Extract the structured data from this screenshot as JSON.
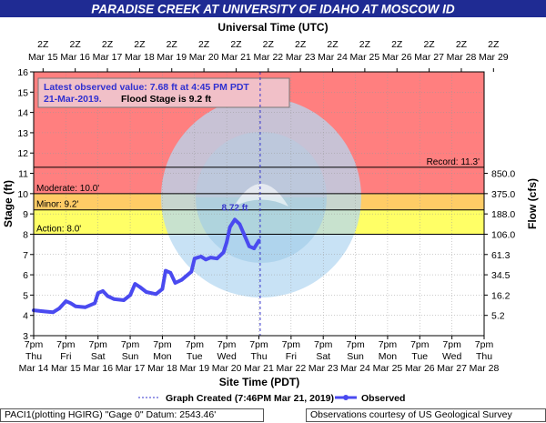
{
  "title": "PARADISE CREEK AT UNIVERSITY OF IDAHO AT MOSCOW ID",
  "top_axis_title": "Universal Time (UTC)",
  "bottom_axis_title": "Site Time (PDT)",
  "left_axis_title": "Stage (ft)",
  "right_axis_title": "Flow (cfs)",
  "top_ticks": [
    {
      "hour": "2Z",
      "date": "Mar 15"
    },
    {
      "hour": "2Z",
      "date": "Mar 16"
    },
    {
      "hour": "2Z",
      "date": "Mar 17"
    },
    {
      "hour": "2Z",
      "date": "Mar 18"
    },
    {
      "hour": "2Z",
      "date": "Mar 19"
    },
    {
      "hour": "2Z",
      "date": "Mar 20"
    },
    {
      "hour": "2Z",
      "date": "Mar 21"
    },
    {
      "hour": "2Z",
      "date": "Mar 22"
    },
    {
      "hour": "2Z",
      "date": "Mar 23"
    },
    {
      "hour": "2Z",
      "date": "Mar 24"
    },
    {
      "hour": "2Z",
      "date": "Mar 25"
    },
    {
      "hour": "2Z",
      "date": "Mar 26"
    },
    {
      "hour": "2Z",
      "date": "Mar 27"
    },
    {
      "hour": "2Z",
      "date": "Mar 28"
    },
    {
      "hour": "2Z",
      "date": "Mar 29"
    }
  ],
  "bottom_ticks": [
    {
      "time": "7pm",
      "day": "Thu",
      "date": "Mar 14"
    },
    {
      "time": "7pm",
      "day": "Fri",
      "date": "Mar 15"
    },
    {
      "time": "7pm",
      "day": "Sat",
      "date": "Mar 16"
    },
    {
      "time": "7pm",
      "day": "Sun",
      "date": "Mar 17"
    },
    {
      "time": "7pm",
      "day": "Mon",
      "date": "Mar 18"
    },
    {
      "time": "7pm",
      "day": "Tue",
      "date": "Mar 19"
    },
    {
      "time": "7pm",
      "day": "Wed",
      "date": "Mar 20"
    },
    {
      "time": "7pm",
      "day": "Thu",
      "date": "Mar 21"
    },
    {
      "time": "7pm",
      "day": "Fri",
      "date": "Mar 22"
    },
    {
      "time": "7pm",
      "day": "Sat",
      "date": "Mar 23"
    },
    {
      "time": "7pm",
      "day": "Sun",
      "date": "Mar 24"
    },
    {
      "time": "7pm",
      "day": "Mon",
      "date": "Mar 25"
    },
    {
      "time": "7pm",
      "day": "Tue",
      "date": "Mar 26"
    },
    {
      "time": "7pm",
      "day": "Wed",
      "date": "Mar 27"
    },
    {
      "time": "7pm",
      "day": "Thu",
      "date": "Mar 28"
    }
  ],
  "flow_ticks": [
    {
      "label": "850.0",
      "stage": 11.0
    },
    {
      "label": "375.0",
      "stage": 10.0
    },
    {
      "label": "188.0",
      "stage": 9.0
    },
    {
      "label": "106.0",
      "stage": 8.0
    },
    {
      "label": "61.3",
      "stage": 7.0
    },
    {
      "label": "34.5",
      "stage": 6.0
    },
    {
      "label": "16.2",
      "stage": 5.0
    },
    {
      "label": "5.2",
      "stage": 4.0
    }
  ],
  "stage_labels": [
    {
      "text": "Record: 11.3'"
    },
    {
      "text": "Moderate: 10.0'"
    },
    {
      "text": "Minor: 9.2'"
    },
    {
      "text": "Action: 8.0'"
    }
  ],
  "info_box": {
    "line1": "Latest observed value: 7.68 ft at 4:45 PM PDT",
    "line2_date": "21-Mar-2019.",
    "line2_flood": "Flood Stage is 9.2 ft"
  },
  "peak_label": "8.72 ft",
  "legend": {
    "created": "Graph Created (7:46PM Mar 21, 2019)",
    "observed": "Observed"
  },
  "footer_left": "PACI1(plotting HGIRG) \"Gage 0\" Datum: 2543.46'",
  "footer_right": "Observations courtesy of US Geological Survey",
  "colors": {
    "title_bg": "#1f2b93",
    "record_zone": "#ff7f7f",
    "moderate_zone": "#ffcc66",
    "minor_zone": "#ffff66",
    "observed_line": "#4a4af0",
    "created_line": "#3333cc"
  },
  "chart_data": {
    "type": "line",
    "x_unit": "days since Mar 14 7pm PDT",
    "xlim": [
      0,
      14
    ],
    "ylim": [
      3,
      16
    ],
    "ylabel": "Stage (ft)",
    "xlabel": "Site Time (PDT)",
    "flood_categories": [
      {
        "name": "Record",
        "stage": 11.3
      },
      {
        "name": "Moderate",
        "stage": 10.0
      },
      {
        "name": "Minor",
        "stage": 9.2
      },
      {
        "name": "Action",
        "stage": 8.0
      }
    ],
    "graph_created_x": 7.04,
    "peak": {
      "x": 6.25,
      "y": 8.72
    },
    "series": [
      {
        "name": "Observed",
        "x": [
          0,
          0.3,
          0.6,
          0.8,
          1.0,
          1.15,
          1.3,
          1.6,
          1.9,
          2.0,
          2.15,
          2.3,
          2.5,
          2.8,
          3.0,
          3.15,
          3.3,
          3.5,
          3.8,
          4.0,
          4.1,
          4.25,
          4.4,
          4.6,
          4.9,
          5.0,
          5.2,
          5.35,
          5.5,
          5.7,
          5.9,
          6.0,
          6.1,
          6.25,
          6.4,
          6.55,
          6.7,
          6.85,
          7.0
        ],
        "y": [
          4.25,
          4.2,
          4.15,
          4.35,
          4.7,
          4.6,
          4.45,
          4.4,
          4.6,
          5.1,
          5.2,
          4.95,
          4.8,
          4.75,
          5.0,
          5.55,
          5.4,
          5.15,
          5.05,
          5.3,
          6.2,
          6.1,
          5.6,
          5.75,
          6.15,
          6.8,
          6.9,
          6.75,
          6.85,
          6.8,
          7.1,
          7.6,
          8.35,
          8.72,
          8.5,
          7.95,
          7.4,
          7.3,
          7.68
        ]
      }
    ]
  }
}
